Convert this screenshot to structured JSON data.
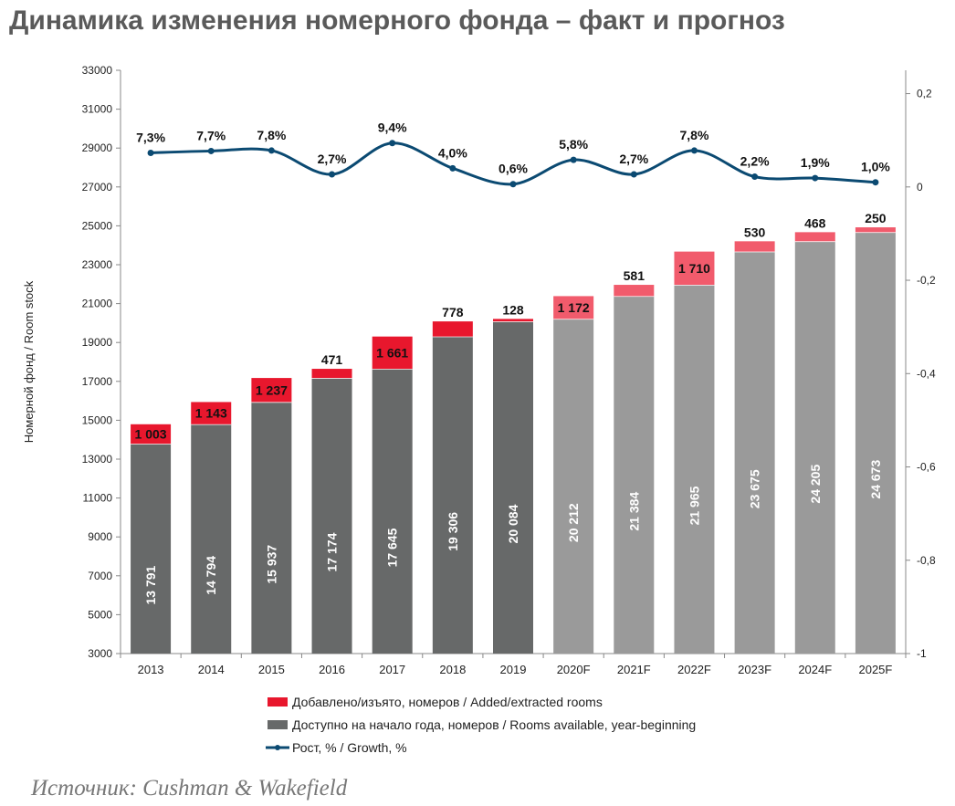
{
  "title": "Динамика изменения номерного фонда – факт и прогноз",
  "source": "Источник: Cushman & Wakefield",
  "colors": {
    "added": "#e8172d",
    "added_forecast": "#f15b6c",
    "available": "#676969",
    "available_forecast": "#9a9a9a",
    "growth_line": "#0b4a72"
  },
  "chart_data": {
    "type": "bar",
    "stacked": true,
    "categories": [
      "2013",
      "2014",
      "2015",
      "2016",
      "2017",
      "2018",
      "2019",
      "2020F",
      "2021F",
      "2022F",
      "2023F",
      "2024F",
      "2025F"
    ],
    "forecast_from_index": 7,
    "ylabel": "Номерной фонд / Room stock",
    "ylim": [
      3000,
      33000
    ],
    "yticks": [
      "3000",
      "5000",
      "7000",
      "9000",
      "11000",
      "13000",
      "15000",
      "17000",
      "19000",
      "21000",
      "23000",
      "25000",
      "27000",
      "29000",
      "31000",
      "33000"
    ],
    "y2lim": [
      -1,
      0.25
    ],
    "y2ticks": [
      "-1",
      "-0,8",
      "-0,6",
      "-0,4",
      "-0,2",
      "0",
      "0,2"
    ],
    "series": [
      {
        "name": "Доступно на начало года, номеров / Rooms available, year-beginning",
        "values": [
          13791,
          14794,
          15937,
          17174,
          17645,
          19306,
          20084,
          20212,
          21384,
          21965,
          23675,
          24205,
          24673
        ],
        "labels": [
          "13 791",
          "14 794",
          "15 937",
          "17 174",
          "17 645",
          "19 306",
          "20 084",
          "20 212",
          "21 384",
          "21 965",
          "23 675",
          "24 205",
          "24 673"
        ]
      },
      {
        "name": "Добавлено/изъято, номеров / Added/extracted rooms",
        "values": [
          1003,
          1143,
          1237,
          471,
          1661,
          778,
          128,
          1172,
          581,
          1710,
          530,
          468,
          250
        ],
        "labels": [
          "1 003",
          "1 143",
          "1 237",
          "471",
          "1 661",
          "778",
          "128",
          "1 172",
          "581",
          "1 710",
          "530",
          "468",
          "250"
        ]
      },
      {
        "name": "Рост, % / Growth, %",
        "axis": "secondary",
        "values": [
          0.073,
          0.077,
          0.078,
          0.027,
          0.094,
          0.04,
          0.006,
          0.058,
          0.027,
          0.078,
          0.022,
          0.019,
          0.01
        ],
        "labels": [
          "7,3%",
          "7,7%",
          "7,8%",
          "2,7%",
          "9,4%",
          "4,0%",
          "0,6%",
          "5,8%",
          "2,7%",
          "7,8%",
          "2,2%",
          "1,9%",
          "1,0%"
        ]
      }
    ],
    "legend_position": "bottom",
    "grid": false
  }
}
